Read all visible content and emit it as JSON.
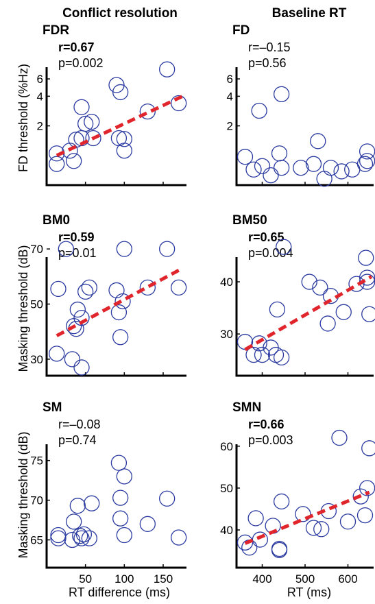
{
  "column_titles": [
    "Conflict resolution",
    "Baseline RT"
  ],
  "row_ylabels": [
    "FD threshold (%Hz)",
    "Masking threshold (dB)",
    "Masking threshold (dB)"
  ],
  "xlabels": [
    "RT difference (ms)",
    "RT (ms)"
  ],
  "colors": {
    "marker": "#2a3aa0",
    "fit": "#e0262c",
    "axis": "#000000"
  },
  "chart_data": [
    {
      "type": "scatter",
      "title": "FDR",
      "row": 0,
      "col": 0,
      "stat_r": "r=0.67",
      "stat_p": "p=0.002",
      "significant": true,
      "xlim": [
        0,
        180
      ],
      "ylim_log": [
        0.5,
        15
      ],
      "yscale": "log",
      "yticks": [
        2,
        4,
        6
      ],
      "xticks": [
        50,
        100,
        150
      ],
      "show_xtick_labels": false,
      "points": [
        [
          13,
          1.05
        ],
        [
          13,
          0.82
        ],
        [
          30,
          1.12
        ],
        [
          35,
          0.88
        ],
        [
          38,
          1.45
        ],
        [
          45,
          1.5
        ],
        [
          45,
          3.1
        ],
        [
          50,
          2.1
        ],
        [
          58,
          2.2
        ],
        [
          60,
          1.5
        ],
        [
          90,
          5.2
        ],
        [
          93,
          1.5
        ],
        [
          95,
          4.4
        ],
        [
          100,
          1.47
        ],
        [
          100,
          1.12
        ],
        [
          130,
          2.8
        ],
        [
          155,
          7.5
        ],
        [
          170,
          3.4
        ]
      ],
      "fit": [
        [
          13,
          1.0
        ],
        [
          175,
          4.0
        ]
      ]
    },
    {
      "type": "scatter",
      "title": "FD",
      "row": 0,
      "col": 1,
      "stat_r": "r=–0.15",
      "stat_p": "p=0.56",
      "significant": false,
      "xlim": [
        340,
        660
      ],
      "ylim_log": [
        0.5,
        15
      ],
      "yscale": "log",
      "yticks": [
        2,
        4,
        6
      ],
      "xticks": [
        400,
        500,
        600
      ],
      "show_xtick_labels": false,
      "points": [
        [
          360,
          0.97
        ],
        [
          380,
          0.72
        ],
        [
          393,
          2.85
        ],
        [
          400,
          0.78
        ],
        [
          420,
          0.63
        ],
        [
          440,
          1.05
        ],
        [
          445,
          4.2
        ],
        [
          445,
          0.75
        ],
        [
          490,
          0.75
        ],
        [
          520,
          0.82
        ],
        [
          530,
          1.4
        ],
        [
          545,
          0.58
        ],
        [
          560,
          0.75
        ],
        [
          585,
          0.69
        ],
        [
          610,
          0.72
        ],
        [
          640,
          0.82
        ],
        [
          645,
          0.88
        ],
        [
          645,
          1.1
        ]
      ],
      "fit": null
    },
    {
      "type": "scatter",
      "title": "BM0",
      "row": 1,
      "col": 0,
      "stat_r": "r=0.59",
      "stat_p": "p=0.01",
      "significant": true,
      "xlim": [
        0,
        180
      ],
      "ylim": [
        24,
        77
      ],
      "yscale": "linear",
      "yticks": [
        30,
        50,
        70
      ],
      "xticks": [
        50,
        100,
        150
      ],
      "show_xtick_labels": false,
      "points": [
        [
          15,
          55.5
        ],
        [
          13,
          32
        ],
        [
          25,
          70
        ],
        [
          33,
          30
        ],
        [
          35,
          42
        ],
        [
          38,
          41
        ],
        [
          40,
          48
        ],
        [
          45,
          45
        ],
        [
          45,
          27
        ],
        [
          50,
          54.5
        ],
        [
          55,
          56
        ],
        [
          90,
          55
        ],
        [
          93,
          47
        ],
        [
          95,
          38
        ],
        [
          98,
          51
        ],
        [
          100,
          70
        ],
        [
          130,
          56
        ],
        [
          155,
          70
        ],
        [
          170,
          56
        ]
      ],
      "fit": [
        [
          13,
          38.5
        ],
        [
          175,
          63
        ]
      ]
    },
    {
      "type": "scatter",
      "title": "BM50",
      "row": 1,
      "col": 1,
      "stat_r": "r=0.65",
      "stat_p": "p=0.004",
      "significant": true,
      "xlim": [
        340,
        660
      ],
      "ylim": [
        22,
        50
      ],
      "yscale": "linear",
      "yticks": [
        30,
        40
      ],
      "xticks": [
        400,
        500,
        600
      ],
      "show_xtick_labels": false,
      "points": [
        [
          360,
          28.5
        ],
        [
          380,
          26
        ],
        [
          393,
          28.2
        ],
        [
          400,
          26
        ],
        [
          420,
          27.4
        ],
        [
          432,
          26
        ],
        [
          435,
          34.7
        ],
        [
          445,
          25.5
        ],
        [
          450,
          46.7
        ],
        [
          510,
          40
        ],
        [
          535,
          38.9
        ],
        [
          553,
          32
        ],
        [
          560,
          37.3
        ],
        [
          590,
          34.2
        ],
        [
          620,
          39.6
        ],
        [
          642,
          44.6
        ],
        [
          645,
          40.8
        ],
        [
          645,
          40
        ],
        [
          650,
          33.8
        ]
      ],
      "fit": [
        [
          360,
          27
        ],
        [
          655,
          41
        ]
      ]
    },
    {
      "type": "scatter",
      "title": "SM",
      "row": 2,
      "col": 0,
      "stat_r": "r=–0.08",
      "stat_p": "p=0.74",
      "significant": false,
      "xlim": [
        0,
        180
      ],
      "ylim": [
        61.5,
        80.5
      ],
      "yscale": "linear",
      "yticks": [
        65,
        70,
        75
      ],
      "xticks": [
        50,
        100,
        150
      ],
      "show_xtick_labels": true,
      "points": [
        [
          15,
          65.6
        ],
        [
          15,
          65.2
        ],
        [
          35,
          67.3
        ],
        [
          33,
          65
        ],
        [
          40,
          69.3
        ],
        [
          43,
          65.5
        ],
        [
          45,
          65.2
        ],
        [
          48,
          65.7
        ],
        [
          55,
          65.2
        ],
        [
          58,
          69.6
        ],
        [
          93,
          74.7
        ],
        [
          95,
          70.3
        ],
        [
          95,
          67.7
        ],
        [
          100,
          73
        ],
        [
          100,
          65.6
        ],
        [
          130,
          67
        ],
        [
          155,
          70.2
        ],
        [
          170,
          65.3
        ]
      ],
      "fit": null
    },
    {
      "type": "scatter",
      "title": "SMN",
      "row": 2,
      "col": 1,
      "stat_r": "r=0.66",
      "stat_p": "p=0.003",
      "significant": true,
      "xlim": [
        340,
        660
      ],
      "ylim": [
        31,
        67
      ],
      "yscale": "linear",
      "yticks": [
        40,
        50,
        60
      ],
      "xticks": [
        400,
        500,
        600
      ],
      "show_xtick_labels": true,
      "points": [
        [
          360,
          37
        ],
        [
          370,
          35.8
        ],
        [
          385,
          42.8
        ],
        [
          395,
          37.7
        ],
        [
          425,
          41
        ],
        [
          440,
          35.5
        ],
        [
          440,
          35.2
        ],
        [
          445,
          46.8
        ],
        [
          495,
          43.8
        ],
        [
          520,
          40.5
        ],
        [
          538,
          40.2
        ],
        [
          555,
          44.5
        ],
        [
          580,
          62
        ],
        [
          600,
          42
        ],
        [
          630,
          48
        ],
        [
          640,
          43.5
        ],
        [
          645,
          50
        ],
        [
          650,
          59.5
        ]
      ],
      "fit": [
        [
          360,
          36.8
        ],
        [
          650,
          49
        ]
      ]
    }
  ]
}
